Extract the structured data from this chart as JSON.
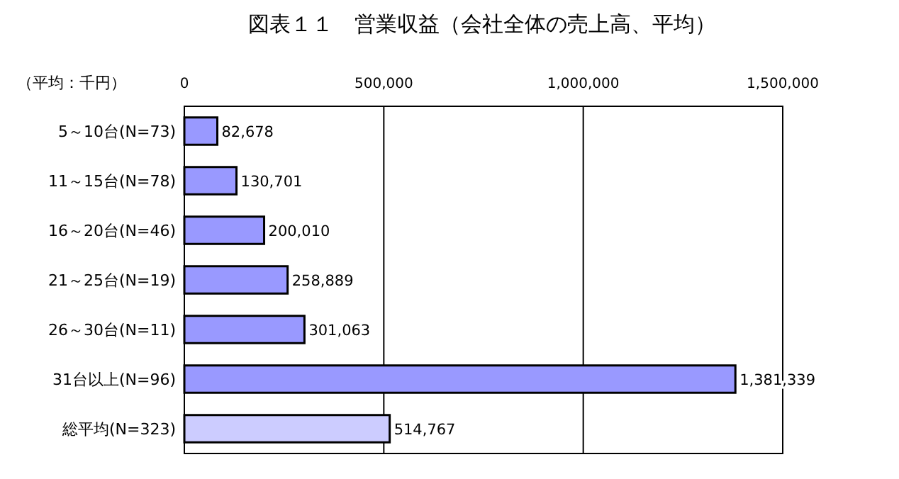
{
  "chart_data": {
    "type": "bar",
    "orientation": "horizontal",
    "title": "図表１１　営業収益（会社全体の売上高、平均）",
    "xlabel": "（平均：千円）",
    "categories": [
      "5～10台(N=73)",
      "11～15台(N=78)",
      "16～20台(N=46)",
      "21～25台(N=19)",
      "26～30台(N=11)",
      "31台以上(N=96)",
      "総平均(N=323)"
    ],
    "values": [
      82678,
      130701,
      200010,
      258889,
      301063,
      1381339,
      514767
    ],
    "colors": [
      "#9999ff",
      "#9999ff",
      "#9999ff",
      "#9999ff",
      "#9999ff",
      "#9999ff",
      "#ccccff"
    ],
    "xlim": [
      0,
      1500000
    ],
    "xticks": [
      {
        "value": 0,
        "label": "0"
      },
      {
        "value": 500000,
        "label": "500,000"
      },
      {
        "value": 1000000,
        "label": "1,000,000"
      },
      {
        "value": 1500000,
        "label": "1,500,000"
      }
    ],
    "value_labels": [
      "82,678",
      "130,701",
      "200,010",
      "258,889",
      "301,063",
      "1,381,339",
      "514,767"
    ],
    "grid": "x"
  }
}
